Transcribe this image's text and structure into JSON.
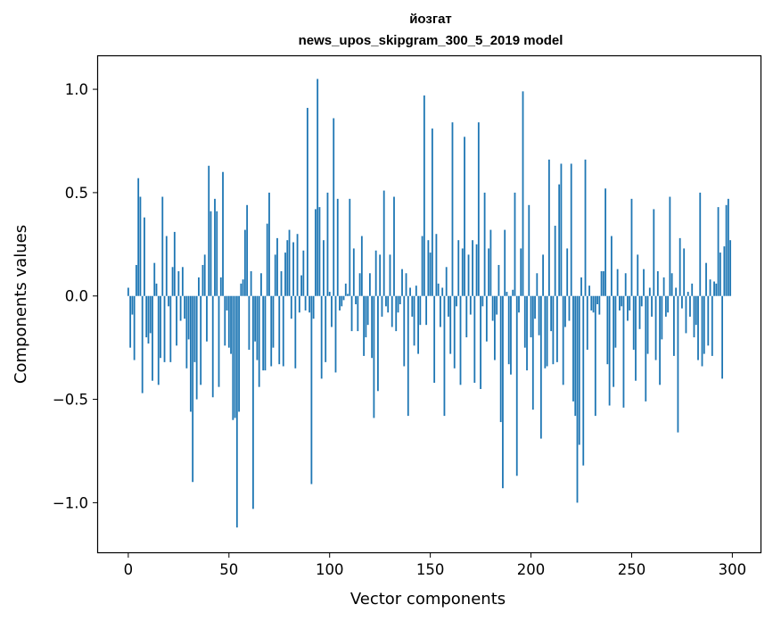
{
  "chart_data": {
    "type": "bar",
    "title_line1": "йозгат",
    "title_line2": "news_upos_skipgram_300_5_2019 model",
    "xlabel": "Vector components",
    "ylabel": "Components values",
    "xlim": [
      -15,
      314
    ],
    "ylim": [
      -1.24,
      1.16
    ],
    "xticks": [
      0,
      50,
      100,
      150,
      200,
      250,
      300
    ],
    "xtick_labels": [
      "0",
      "50",
      "100",
      "150",
      "200",
      "250",
      "300"
    ],
    "yticks": [
      -1.0,
      -0.5,
      0.0,
      0.5,
      1.0
    ],
    "ytick_labels": [
      "−1.0",
      "−0.5",
      "0.0",
      "0.5",
      "1.0"
    ],
    "grid": false,
    "values": [
      0.04,
      -0.25,
      -0.09,
      -0.31,
      0.15,
      0.57,
      0.48,
      -0.47,
      0.38,
      -0.2,
      -0.23,
      -0.18,
      -0.41,
      0.16,
      0.06,
      -0.43,
      -0.3,
      0.48,
      -0.32,
      0.29,
      -0.05,
      -0.32,
      0.14,
      0.31,
      -0.24,
      0.12,
      -0.12,
      0.14,
      -0.11,
      -0.35,
      -0.21,
      -0.56,
      -0.9,
      -0.32,
      -0.5,
      0.09,
      -0.43,
      0.15,
      0.2,
      -0.22,
      0.63,
      0.41,
      -0.49,
      0.47,
      0.41,
      -0.44,
      0.09,
      0.6,
      -0.24,
      -0.07,
      -0.25,
      -0.28,
      -0.6,
      -0.59,
      -1.12,
      -0.56,
      0.06,
      0.08,
      0.32,
      0.44,
      -0.26,
      0.12,
      -1.03,
      -0.22,
      -0.31,
      -0.44,
      0.11,
      -0.36,
      -0.36,
      0.35,
      0.5,
      -0.34,
      -0.25,
      0.2,
      0.28,
      -0.33,
      0.12,
      -0.34,
      0.21,
      0.27,
      0.32,
      -0.11,
      0.26,
      -0.35,
      0.3,
      -0.08,
      0.1,
      0.22,
      -0.07,
      0.91,
      -0.08,
      -0.91,
      -0.11,
      0.42,
      1.05,
      0.43,
      -0.4,
      0.27,
      -0.32,
      0.5,
      0.02,
      -0.15,
      0.86,
      -0.37,
      0.47,
      -0.07,
      -0.05,
      -0.02,
      0.06,
      0.01,
      0.47,
      -0.17,
      0.23,
      -0.04,
      -0.17,
      0.11,
      0.29,
      -0.29,
      -0.2,
      -0.14,
      0.11,
      -0.3,
      -0.59,
      0.22,
      -0.46,
      0.2,
      -0.1,
      0.51,
      -0.05,
      -0.08,
      0.2,
      -0.15,
      0.48,
      -0.17,
      -0.08,
      -0.04,
      0.13,
      -0.34,
      0.11,
      -0.58,
      0.04,
      -0.1,
      -0.24,
      0.05,
      -0.28,
      -0.14,
      0.29,
      0.97,
      -0.14,
      0.27,
      0.21,
      0.81,
      -0.42,
      0.3,
      0.06,
      -0.15,
      0.04,
      -0.58,
      0.14,
      -0.1,
      -0.28,
      0.84,
      -0.35,
      -0.05,
      0.27,
      -0.43,
      0.23,
      0.77,
      -0.2,
      0.2,
      -0.09,
      0.27,
      -0.42,
      0.25,
      0.84,
      -0.45,
      -0.05,
      0.5,
      -0.22,
      0.23,
      0.32,
      -0.12,
      -0.31,
      -0.09,
      0.15,
      -0.61,
      -0.93,
      0.32,
      0.02,
      -0.33,
      -0.38,
      0.03,
      0.5,
      -0.87,
      -0.08,
      0.23,
      0.99,
      -0.25,
      -0.36,
      0.44,
      -0.2,
      -0.55,
      -0.11,
      0.11,
      -0.19,
      -0.69,
      0.2,
      -0.35,
      -0.34,
      0.66,
      -0.17,
      -0.33,
      0.34,
      -0.32,
      0.54,
      0.64,
      -0.43,
      -0.15,
      0.23,
      -0.12,
      0.64,
      -0.51,
      -0.58,
      -1.0,
      -0.72,
      0.09,
      -0.82,
      0.66,
      -0.26,
      0.05,
      -0.07,
      -0.08,
      -0.58,
      -0.04,
      -0.09,
      0.12,
      0.12,
      0.52,
      -0.33,
      -0.53,
      0.29,
      -0.44,
      -0.25,
      0.13,
      -0.07,
      -0.05,
      -0.54,
      0.11,
      -0.12,
      -0.07,
      0.47,
      -0.26,
      -0.41,
      0.2,
      -0.16,
      -0.05,
      0.13,
      -0.51,
      -0.28,
      0.04,
      -0.1,
      0.42,
      -0.31,
      0.12,
      -0.43,
      -0.21,
      0.09,
      -0.1,
      -0.08,
      0.48,
      0.11,
      -0.29,
      0.04,
      -0.66,
      0.28,
      -0.06,
      0.23,
      -0.18,
      0.02,
      -0.1,
      0.06,
      -0.2,
      -0.14,
      -0.31,
      0.5,
      -0.34,
      -0.28,
      0.16,
      -0.24,
      0.08,
      -0.29,
      0.07,
      0.06,
      0.43,
      0.21,
      -0.4,
      0.24,
      0.44,
      0.47,
      0.27
    ]
  }
}
